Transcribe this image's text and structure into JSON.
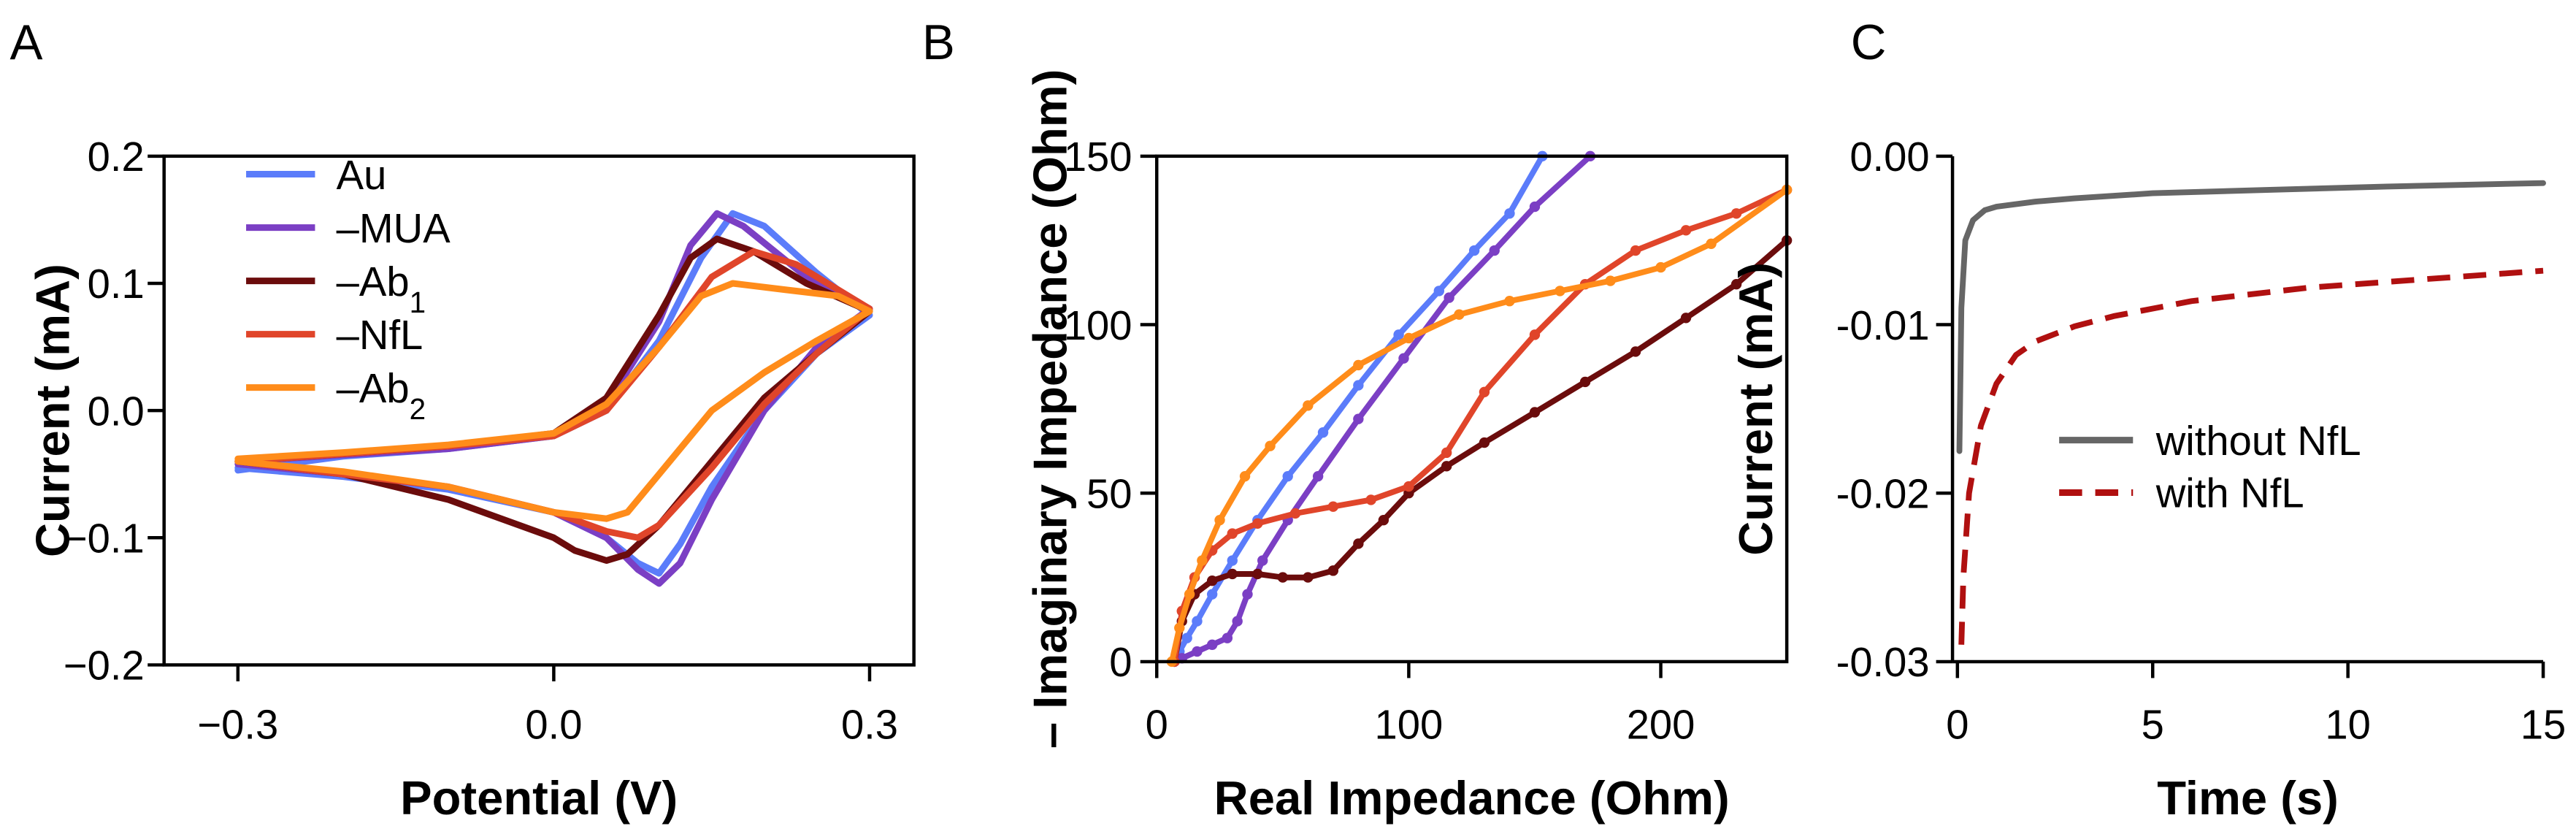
{
  "panels": [
    "A",
    "B",
    "C"
  ],
  "chart_data": [
    {
      "type": "line",
      "panel": "A",
      "xlabel": "Potential (V)",
      "ylabel": "Current (mA)",
      "xlim": [
        -0.3,
        0.3
      ],
      "ylim": [
        -0.2,
        0.2
      ],
      "xticks": [
        {
          "v": -0.3,
          "label": "−0.3"
        },
        {
          "v": 0.0,
          "label": "0.0"
        },
        {
          "v": 0.3,
          "label": "0.3"
        }
      ],
      "yticks": [
        {
          "v": 0.2,
          "label": "0.2"
        },
        {
          "v": 0.1,
          "label": "0.1"
        },
        {
          "v": 0.0,
          "label": "0.0"
        },
        {
          "v": -0.1,
          "label": "−0.1"
        },
        {
          "v": -0.2,
          "label": "−0.2"
        }
      ],
      "legend_position": "top-left",
      "series": [
        {
          "name": "Au",
          "legend": "Au",
          "sub": "",
          "color": "#5b7cfa",
          "points": [
            [
              -0.3,
              -0.047
            ],
            [
              -0.2,
              -0.036
            ],
            [
              -0.1,
              -0.03
            ],
            [
              0,
              -0.02
            ],
            [
              0.05,
              0.0
            ],
            [
              0.1,
              0.055
            ],
            [
              0.14,
              0.12
            ],
            [
              0.17,
              0.155
            ],
            [
              0.2,
              0.145
            ],
            [
              0.25,
              0.108
            ],
            [
              0.3,
              0.075
            ],
            [
              0.25,
              0.045
            ],
            [
              0.2,
              0.0
            ],
            [
              0.15,
              -0.06
            ],
            [
              0.12,
              -0.105
            ],
            [
              0.1,
              -0.128
            ],
            [
              0.08,
              -0.12
            ],
            [
              0.05,
              -0.1
            ],
            [
              0,
              -0.08
            ],
            [
              -0.1,
              -0.062
            ],
            [
              -0.2,
              -0.052
            ],
            [
              -0.3,
              -0.045
            ]
          ]
        },
        {
          "name": "MUA",
          "legend": "–MUA",
          "sub": "",
          "color": "#7b3fc4",
          "points": [
            [
              -0.3,
              -0.04
            ],
            [
              -0.2,
              -0.035
            ],
            [
              -0.1,
              -0.03
            ],
            [
              0,
              -0.02
            ],
            [
              0.05,
              0.005
            ],
            [
              0.1,
              0.07
            ],
            [
              0.13,
              0.13
            ],
            [
              0.155,
              0.155
            ],
            [
              0.18,
              0.145
            ],
            [
              0.24,
              0.105
            ],
            [
              0.3,
              0.08
            ],
            [
              0.25,
              0.05
            ],
            [
              0.2,
              0.0
            ],
            [
              0.15,
              -0.07
            ],
            [
              0.12,
              -0.12
            ],
            [
              0.1,
              -0.136
            ],
            [
              0.08,
              -0.125
            ],
            [
              0.05,
              -0.1
            ],
            [
              0,
              -0.08
            ],
            [
              -0.1,
              -0.06
            ],
            [
              -0.2,
              -0.05
            ],
            [
              -0.3,
              -0.042
            ]
          ]
        },
        {
          "name": "Ab1",
          "legend": "–Ab",
          "sub": "1",
          "color": "#6b0c0c",
          "points": [
            [
              -0.3,
              -0.04
            ],
            [
              -0.2,
              -0.034
            ],
            [
              -0.1,
              -0.028
            ],
            [
              0,
              -0.018
            ],
            [
              0.05,
              0.01
            ],
            [
              0.1,
              0.075
            ],
            [
              0.13,
              0.12
            ],
            [
              0.155,
              0.135
            ],
            [
              0.19,
              0.125
            ],
            [
              0.24,
              0.1
            ],
            [
              0.3,
              0.078
            ],
            [
              0.25,
              0.045
            ],
            [
              0.2,
              0.01
            ],
            [
              0.15,
              -0.04
            ],
            [
              0.1,
              -0.09
            ],
            [
              0.07,
              -0.113
            ],
            [
              0.05,
              -0.118
            ],
            [
              0.02,
              -0.11
            ],
            [
              0,
              -0.1
            ],
            [
              -0.1,
              -0.07
            ],
            [
              -0.2,
              -0.05
            ],
            [
              -0.3,
              -0.04
            ]
          ]
        },
        {
          "name": "NfL",
          "legend": "–NfL",
          "sub": "",
          "color": "#e0452a",
          "points": [
            [
              -0.3,
              -0.04
            ],
            [
              -0.2,
              -0.034
            ],
            [
              -0.1,
              -0.028
            ],
            [
              0,
              -0.02
            ],
            [
              0.05,
              0.0
            ],
            [
              0.1,
              0.05
            ],
            [
              0.15,
              0.105
            ],
            [
              0.19,
              0.125
            ],
            [
              0.23,
              0.115
            ],
            [
              0.27,
              0.095
            ],
            [
              0.3,
              0.08
            ],
            [
              0.25,
              0.045
            ],
            [
              0.2,
              0.005
            ],
            [
              0.15,
              -0.045
            ],
            [
              0.1,
              -0.09
            ],
            [
              0.08,
              -0.1
            ],
            [
              0.05,
              -0.095
            ],
            [
              0,
              -0.08
            ],
            [
              -0.1,
              -0.06
            ],
            [
              -0.2,
              -0.05
            ],
            [
              -0.3,
              -0.04
            ]
          ]
        },
        {
          "name": "Ab2",
          "legend": "–Ab",
          "sub": "2",
          "color": "#ff8c1a",
          "points": [
            [
              -0.3,
              -0.038
            ],
            [
              -0.2,
              -0.033
            ],
            [
              -0.1,
              -0.027
            ],
            [
              0,
              -0.018
            ],
            [
              0.05,
              0.005
            ],
            [
              0.1,
              0.05
            ],
            [
              0.14,
              0.09
            ],
            [
              0.17,
              0.1
            ],
            [
              0.22,
              0.095
            ],
            [
              0.27,
              0.09
            ],
            [
              0.3,
              0.078
            ],
            [
              0.25,
              0.055
            ],
            [
              0.2,
              0.03
            ],
            [
              0.15,
              0.0
            ],
            [
              0.1,
              -0.05
            ],
            [
              0.07,
              -0.08
            ],
            [
              0.05,
              -0.085
            ],
            [
              0,
              -0.08
            ],
            [
              -0.1,
              -0.06
            ],
            [
              -0.2,
              -0.048
            ],
            [
              -0.3,
              -0.04
            ]
          ]
        }
      ]
    },
    {
      "type": "line",
      "panel": "B",
      "xlabel": "Real Impedance (Ohm)",
      "ylabel": "– Imaginary Impedance (Ohm)",
      "xlim": [
        0,
        250
      ],
      "ylim": [
        0,
        150
      ],
      "xticks": [
        {
          "v": 0,
          "label": "0"
        },
        {
          "v": 100,
          "label": "100"
        },
        {
          "v": 200,
          "label": "200"
        }
      ],
      "yticks": [
        {
          "v": 0,
          "label": "0"
        },
        {
          "v": 50,
          "label": "50"
        },
        {
          "v": 100,
          "label": "100"
        },
        {
          "v": 150,
          "label": "150"
        }
      ],
      "markers": true,
      "series": [
        {
          "name": "Au",
          "color": "#5b7cfa",
          "points": [
            [
              7,
              0
            ],
            [
              9,
              3
            ],
            [
              12,
              7
            ],
            [
              16,
              12
            ],
            [
              22,
              20
            ],
            [
              30,
              30
            ],
            [
              40,
              42
            ],
            [
              52,
              55
            ],
            [
              66,
              68
            ],
            [
              80,
              82
            ],
            [
              96,
              97
            ],
            [
              112,
              110
            ],
            [
              126,
              122
            ],
            [
              140,
              133
            ],
            [
              153,
              150
            ]
          ]
        },
        {
          "name": "MUA",
          "color": "#7b3fc4",
          "points": [
            [
              10,
              1
            ],
            [
              16,
              3
            ],
            [
              22,
              5
            ],
            [
              28,
              7
            ],
            [
              32,
              12
            ],
            [
              36,
              20
            ],
            [
              42,
              30
            ],
            [
              52,
              42
            ],
            [
              64,
              55
            ],
            [
              80,
              72
            ],
            [
              98,
              90
            ],
            [
              116,
              108
            ],
            [
              134,
              122
            ],
            [
              150,
              135
            ],
            [
              172,
              150
            ]
          ]
        },
        {
          "name": "Ab1",
          "color": "#6b0c0c",
          "points": [
            [
              7,
              0
            ],
            [
              10,
              12
            ],
            [
              15,
              20
            ],
            [
              22,
              24
            ],
            [
              30,
              26
            ],
            [
              40,
              26
            ],
            [
              50,
              25
            ],
            [
              60,
              25
            ],
            [
              70,
              27
            ],
            [
              80,
              35
            ],
            [
              90,
              42
            ],
            [
              100,
              50
            ],
            [
              115,
              58
            ],
            [
              130,
              65
            ],
            [
              150,
              74
            ],
            [
              170,
              83
            ],
            [
              190,
              92
            ],
            [
              210,
              102
            ],
            [
              230,
              112
            ],
            [
              250,
              125
            ]
          ]
        },
        {
          "name": "NfL",
          "color": "#e0452a",
          "points": [
            [
              7,
              0
            ],
            [
              10,
              15
            ],
            [
              15,
              25
            ],
            [
              22,
              33
            ],
            [
              30,
              38
            ],
            [
              40,
              41
            ],
            [
              55,
              44
            ],
            [
              70,
              46
            ],
            [
              85,
              48
            ],
            [
              100,
              52
            ],
            [
              115,
              62
            ],
            [
              130,
              80
            ],
            [
              150,
              97
            ],
            [
              170,
              112
            ],
            [
              190,
              122
            ],
            [
              210,
              128
            ],
            [
              230,
              133
            ],
            [
              250,
              140
            ]
          ]
        },
        {
          "name": "Ab2",
          "color": "#ff8c1a",
          "points": [
            [
              6,
              0
            ],
            [
              9,
              10
            ],
            [
              13,
              20
            ],
            [
              18,
              30
            ],
            [
              25,
              42
            ],
            [
              35,
              55
            ],
            [
              45,
              64
            ],
            [
              60,
              76
            ],
            [
              80,
              88
            ],
            [
              100,
              96
            ],
            [
              120,
              103
            ],
            [
              140,
              107
            ],
            [
              160,
              110
            ],
            [
              180,
              113
            ],
            [
              200,
              117
            ],
            [
              220,
              124
            ],
            [
              250,
              140
            ]
          ]
        }
      ]
    },
    {
      "type": "line",
      "panel": "C",
      "xlabel": "Time (s)",
      "ylabel": "Current (mA)",
      "xlim": [
        0,
        15
      ],
      "ylim": [
        -0.03,
        0.0
      ],
      "xticks": [
        {
          "v": 0,
          "label": "0"
        },
        {
          "v": 5,
          "label": "5"
        },
        {
          "v": 10,
          "label": "10"
        },
        {
          "v": 15,
          "label": "15"
        }
      ],
      "yticks": [
        {
          "v": 0.0,
          "label": "0.00"
        },
        {
          "v": -0.01,
          "label": "-0.01"
        },
        {
          "v": -0.02,
          "label": "-0.02"
        },
        {
          "v": -0.03,
          "label": "-0.03"
        }
      ],
      "legend_position": "center-right",
      "series": [
        {
          "name": "without NfL",
          "color": "#666666",
          "dash": false,
          "points": [
            [
              0.05,
              -0.0175
            ],
            [
              0.1,
              -0.009
            ],
            [
              0.2,
              -0.005
            ],
            [
              0.4,
              -0.0038
            ],
            [
              0.7,
              -0.0032
            ],
            [
              1,
              -0.003
            ],
            [
              2,
              -0.0027
            ],
            [
              3,
              -0.0025
            ],
            [
              5,
              -0.0022
            ],
            [
              8,
              -0.002
            ],
            [
              11,
              -0.0018
            ],
            [
              15,
              -0.0016
            ]
          ]
        },
        {
          "name": "with NfL",
          "color": "#b01010",
          "dash": true,
          "points": [
            [
              0.1,
              -0.029
            ],
            [
              0.15,
              -0.025
            ],
            [
              0.3,
              -0.02
            ],
            [
              0.6,
              -0.016
            ],
            [
              1,
              -0.0135
            ],
            [
              1.5,
              -0.0118
            ],
            [
              2,
              -0.011
            ],
            [
              3,
              -0.0101
            ],
            [
              4,
              -0.0095
            ],
            [
              6,
              -0.0086
            ],
            [
              9,
              -0.0078
            ],
            [
              12,
              -0.0073
            ],
            [
              15,
              -0.0068
            ]
          ]
        }
      ]
    }
  ]
}
